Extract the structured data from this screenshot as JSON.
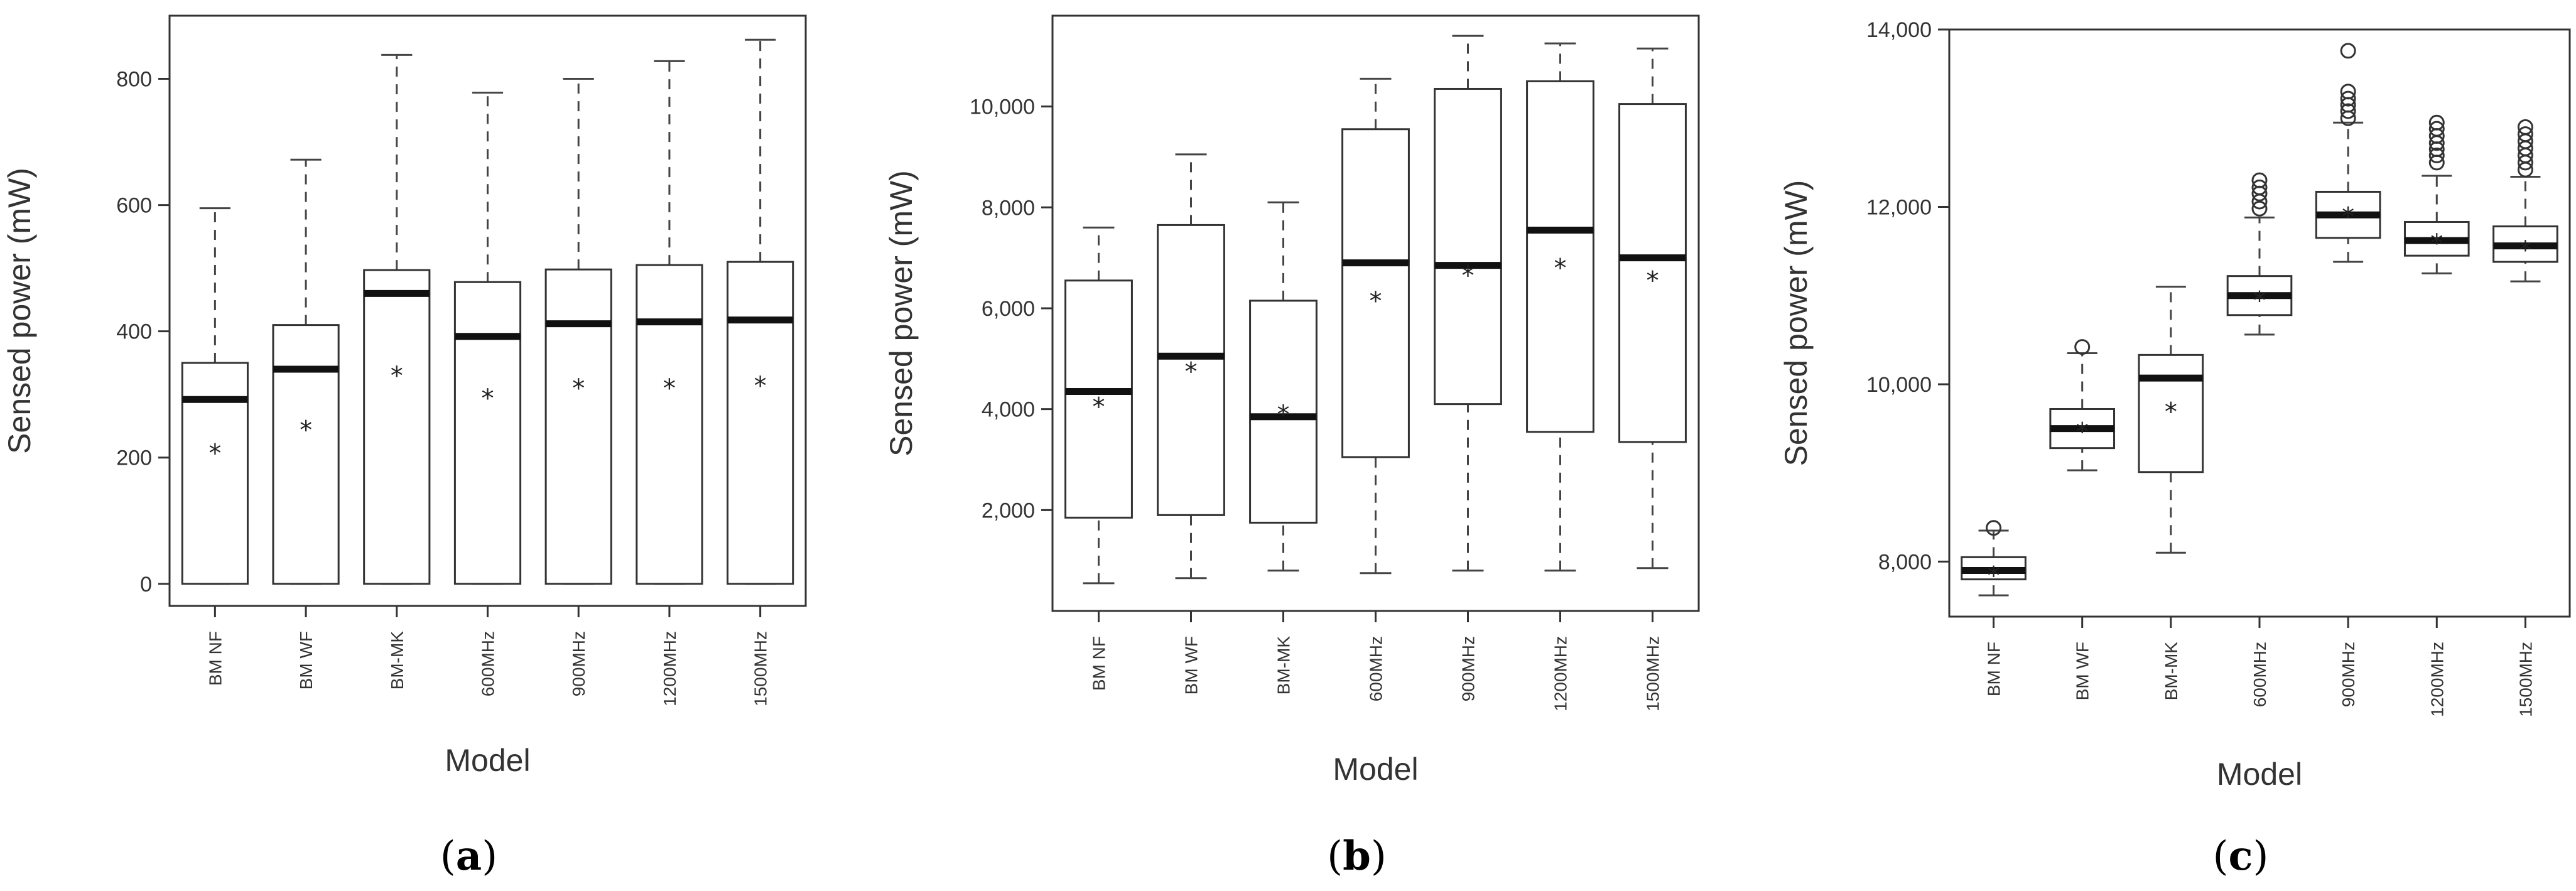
{
  "chart_data": [
    {
      "panel": "a",
      "type": "box",
      "xlabel": "Model",
      "ylabel": "Sensed power (mW)",
      "ylim": [
        -35,
        900
      ],
      "yticks": [
        0,
        200,
        400,
        600,
        800
      ],
      "ytick_labels": [
        "0",
        "200",
        "400",
        "600",
        "800"
      ],
      "categories": [
        "BM NF",
        "BM WF",
        "BM-MK",
        "600MHz",
        "900MHz",
        "1200MHz",
        "1500MHz"
      ],
      "boxes": [
        {
          "min": 0,
          "q1": 0,
          "median": 292,
          "q3": 350,
          "max": 595,
          "mean": 215,
          "outliers": []
        },
        {
          "min": 0,
          "q1": 0,
          "median": 340,
          "q3": 410,
          "max": 672,
          "mean": 252,
          "outliers": []
        },
        {
          "min": 0,
          "q1": 0,
          "median": 460,
          "q3": 497,
          "max": 838,
          "mean": 338,
          "outliers": []
        },
        {
          "min": 0,
          "q1": 0,
          "median": 392,
          "q3": 478,
          "max": 778,
          "mean": 302,
          "outliers": []
        },
        {
          "min": 0,
          "q1": 0,
          "median": 412,
          "q3": 498,
          "max": 800,
          "mean": 318,
          "outliers": []
        },
        {
          "min": 0,
          "q1": 0,
          "median": 415,
          "q3": 505,
          "max": 828,
          "mean": 318,
          "outliers": []
        },
        {
          "min": 0,
          "q1": 0,
          "median": 418,
          "q3": 510,
          "max": 862,
          "mean": 322,
          "outliers": []
        }
      ]
    },
    {
      "panel": "b",
      "type": "box",
      "xlabel": "Model",
      "ylabel": "Sensed power (mW)",
      "ylim": [
        0,
        11800
      ],
      "yticks": [
        2000,
        4000,
        6000,
        8000,
        10000
      ],
      "ytick_labels": [
        "2,000",
        "4,000",
        "6,000",
        "8,000",
        "10,000"
      ],
      "categories": [
        "BM NF",
        "BM WF",
        "BM-MK",
        "600MHz",
        "900MHz",
        "1200MHz",
        "1500MHz"
      ],
      "boxes": [
        {
          "min": 550,
          "q1": 1850,
          "median": 4350,
          "q3": 6550,
          "max": 7600,
          "mean": 4150,
          "outliers": []
        },
        {
          "min": 650,
          "q1": 1900,
          "median": 5050,
          "q3": 7650,
          "max": 9050,
          "mean": 4850,
          "outliers": []
        },
        {
          "min": 800,
          "q1": 1750,
          "median": 3850,
          "q3": 6150,
          "max": 8100,
          "mean": 4000,
          "outliers": []
        },
        {
          "min": 750,
          "q1": 3050,
          "median": 6900,
          "q3": 9550,
          "max": 10550,
          "mean": 6250,
          "outliers": []
        },
        {
          "min": 800,
          "q1": 4100,
          "median": 6850,
          "q3": 10350,
          "max": 11400,
          "mean": 6750,
          "outliers": []
        },
        {
          "min": 800,
          "q1": 3550,
          "median": 7550,
          "q3": 10500,
          "max": 11250,
          "mean": 6900,
          "outliers": []
        },
        {
          "min": 850,
          "q1": 3350,
          "median": 7000,
          "q3": 10050,
          "max": 11150,
          "mean": 6650,
          "outliers": []
        }
      ]
    },
    {
      "panel": "c",
      "type": "box",
      "xlabel": "Model",
      "ylabel": "Sensed power (mW)",
      "ylim": [
        7380,
        14000
      ],
      "yticks": [
        8000,
        10000,
        12000,
        14000
      ],
      "ytick_labels": [
        "8,000",
        "10,000",
        "12,000",
        "14,000"
      ],
      "categories": [
        "BM NF",
        "BM WF",
        "BM-MK",
        "600MHz",
        "900MHz",
        "1200MHz",
        "1500MHz"
      ],
      "boxes": [
        {
          "min": 7620,
          "q1": 7800,
          "median": 7900,
          "q3": 8050,
          "max": 8350,
          "mean": 7900,
          "outliers": [
            8380
          ]
        },
        {
          "min": 9030,
          "q1": 9280,
          "median": 9500,
          "q3": 9720,
          "max": 10350,
          "mean": 9520,
          "outliers": [
            10420
          ]
        },
        {
          "min": 8100,
          "q1": 9010,
          "median": 10070,
          "q3": 10330,
          "max": 11100,
          "mean": 9750,
          "outliers": []
        },
        {
          "min": 10560,
          "q1": 10780,
          "median": 11000,
          "q3": 11220,
          "max": 11880,
          "mean": 11000,
          "outliers": [
            11980,
            12060,
            12150,
            12220,
            12300
          ]
        },
        {
          "min": 11380,
          "q1": 11650,
          "median": 11910,
          "q3": 12170,
          "max": 12950,
          "mean": 11950,
          "outliers": [
            13000,
            13080,
            13150,
            13220,
            13300,
            13760
          ]
        },
        {
          "min": 11250,
          "q1": 11450,
          "median": 11620,
          "q3": 11830,
          "max": 12350,
          "mean": 11650,
          "outliers": [
            12500,
            12580,
            12650,
            12720,
            12800,
            12880,
            12950
          ]
        },
        {
          "min": 11160,
          "q1": 11380,
          "median": 11560,
          "q3": 11780,
          "max": 12340,
          "mean": 11570,
          "outliers": [
            12420,
            12500,
            12580,
            12660,
            12740,
            12820,
            12900
          ]
        }
      ]
    }
  ],
  "panel_labels": [
    "a",
    "b",
    "c"
  ],
  "mean_marker": "*"
}
